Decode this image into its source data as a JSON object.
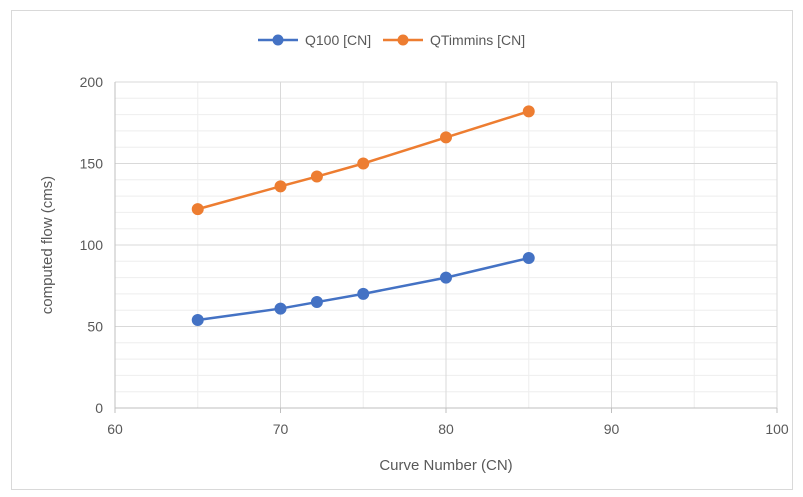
{
  "chart_data": {
    "type": "scatter",
    "title": "",
    "xlabel": "Curve Number (CN)",
    "ylabel": "computed flow (cms)",
    "xlim": [
      60,
      100
    ],
    "ylim": [
      0,
      200
    ],
    "x_ticks": [
      60,
      70,
      80,
      90,
      100
    ],
    "y_ticks": [
      0,
      50,
      100,
      150,
      200
    ],
    "grid": true,
    "legend_position": "top",
    "series": [
      {
        "name": "Q100 [CN]",
        "color": "#4472C4",
        "marker": "circle",
        "points": [
          {
            "x": 65,
            "y": 54
          },
          {
            "x": 70,
            "y": 61
          },
          {
            "x": 72.2,
            "y": 65
          },
          {
            "x": 75,
            "y": 70
          },
          {
            "x": 80,
            "y": 80
          },
          {
            "x": 85,
            "y": 92
          }
        ]
      },
      {
        "name": "QTimmins [CN]",
        "color": "#ED7D31",
        "marker": "circle",
        "points": [
          {
            "x": 65,
            "y": 122
          },
          {
            "x": 70,
            "y": 136
          },
          {
            "x": 72.2,
            "y": 142
          },
          {
            "x": 75,
            "y": 150
          },
          {
            "x": 80,
            "y": 166
          },
          {
            "x": 85,
            "y": 182
          }
        ]
      }
    ]
  }
}
